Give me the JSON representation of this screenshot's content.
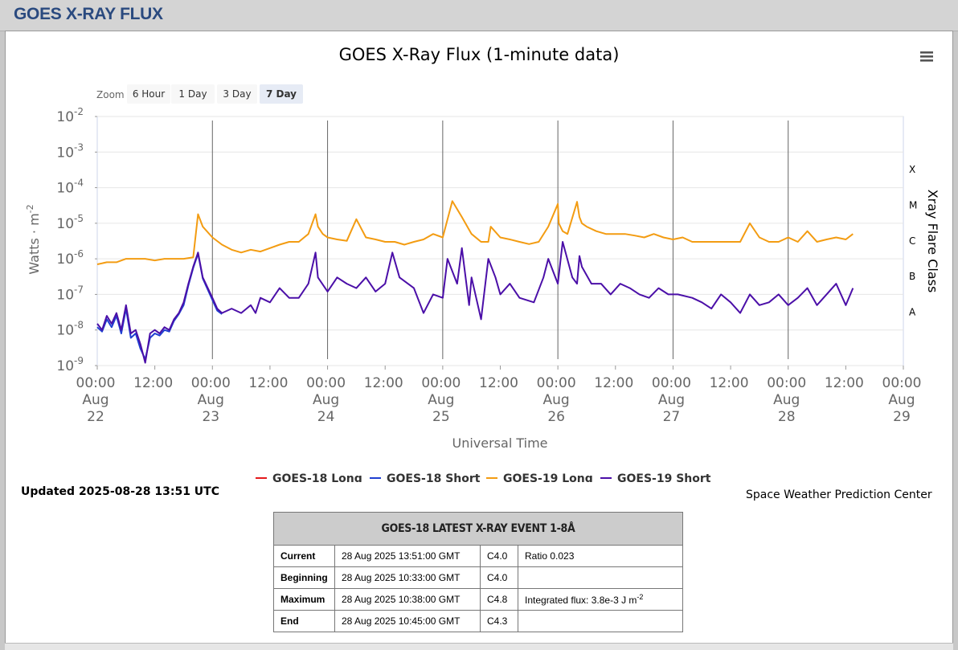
{
  "header": {
    "title": "GOES X-RAY FLUX"
  },
  "chart": {
    "title": "GOES X-Ray Flux (1-minute data)",
    "zoom_label": "Zoom",
    "zoom_buttons": [
      "6 Hour",
      "1 Day",
      "3 Day",
      "7 Day"
    ],
    "zoom_active": "7 Day",
    "y_axis_label": "Watts · m",
    "y_axis_sup": "-2",
    "x_axis_label": "Universal Time",
    "right_axis_label": "Xray Flare Class",
    "flare_classes": [
      "X",
      "M",
      "C",
      "B",
      "A"
    ],
    "y_tick_exponents": [
      "-2",
      "-3",
      "-4",
      "-5",
      "-6",
      "-7",
      "-8",
      "-9"
    ],
    "y_tick_base": "10",
    "x_ticks": [
      {
        "time": "00:00",
        "month": "Aug",
        "day": "22"
      },
      {
        "time": "12:00",
        "month": "",
        "day": ""
      },
      {
        "time": "00:00",
        "month": "Aug",
        "day": "23"
      },
      {
        "time": "12:00",
        "month": "",
        "day": ""
      },
      {
        "time": "00:00",
        "month": "Aug",
        "day": "24"
      },
      {
        "time": "12:00",
        "month": "",
        "day": ""
      },
      {
        "time": "00:00",
        "month": "Aug",
        "day": "25"
      },
      {
        "time": "12:00",
        "month": "",
        "day": ""
      },
      {
        "time": "00:00",
        "month": "Aug",
        "day": "26"
      },
      {
        "time": "12:00",
        "month": "",
        "day": ""
      },
      {
        "time": "00:00",
        "month": "Aug",
        "day": "27"
      },
      {
        "time": "12:00",
        "month": "",
        "day": ""
      },
      {
        "time": "00:00",
        "month": "Aug",
        "day": "28"
      },
      {
        "time": "12:00",
        "month": "",
        "day": ""
      },
      {
        "time": "00:00",
        "month": "Aug",
        "day": "29"
      }
    ],
    "legend": [
      {
        "name": "GOES-18 Long",
        "color": "#e41a1c"
      },
      {
        "name": "GOES-18 Short",
        "color": "#1f3fd1"
      },
      {
        "name": "GOES-19 Long",
        "color": "#f39c12"
      },
      {
        "name": "GOES-19 Short",
        "color": "#4b0fa8"
      }
    ],
    "updated": "Updated 2025-08-28 13:51 UTC",
    "credit": "Space Weather Prediction Center"
  },
  "chart_data": {
    "type": "line",
    "title": "GOES X-Ray Flux (1-minute data)",
    "xlabel": "Universal Time",
    "ylabel": "Watts · m-2",
    "yscale": "log",
    "ylim": [
      1e-09,
      0.01
    ],
    "x_unit": "hours since 2025-08-22 00:00 UTC",
    "xlim": [
      0,
      168
    ],
    "series": [
      {
        "name": "GOES-19 Long",
        "color": "#f39c12",
        "x": [
          0,
          2,
          4,
          6,
          8,
          10,
          12,
          14,
          16,
          18,
          20,
          21,
          22,
          24,
          26,
          28,
          30,
          32,
          34,
          36,
          38,
          40,
          42,
          44,
          45.5,
          46,
          47,
          48,
          50,
          52,
          54,
          56,
          58,
          60,
          61.5,
          62,
          64,
          66,
          68,
          70,
          72,
          74,
          76,
          78,
          80,
          81.5,
          82,
          84,
          86,
          88,
          90,
          92,
          94,
          96,
          96.2,
          97,
          98,
          100,
          100.5,
          101,
          102,
          104,
          106,
          108,
          110,
          112,
          114,
          116,
          118,
          120,
          122,
          124,
          126,
          128,
          130,
          132,
          134,
          136,
          138,
          140,
          142,
          144,
          146,
          148,
          150,
          152,
          154,
          156,
          157.5
        ],
        "y": [
          7e-07,
          8e-07,
          8e-07,
          1e-06,
          1e-06,
          1e-06,
          9e-07,
          1e-06,
          1e-06,
          1e-06,
          1.1e-06,
          1.8e-05,
          8e-06,
          4e-06,
          2.5e-06,
          1.8e-06,
          1.5e-06,
          1.8e-06,
          1.6e-06,
          2e-06,
          2.5e-06,
          3e-06,
          3e-06,
          5e-06,
          1.8e-05,
          8e-06,
          5e-06,
          4e-06,
          3.5e-06,
          3.2e-06,
          1.3e-05,
          4e-06,
          3.5e-06,
          3e-06,
          3e-06,
          3e-06,
          2.5e-06,
          3e-06,
          3.5e-06,
          5e-06,
          4e-06,
          4.2e-05,
          1.5e-05,
          5e-06,
          3e-06,
          3e-06,
          8e-06,
          4e-06,
          3.5e-06,
          3e-06,
          2.6e-06,
          3e-06,
          8e-06,
          3.5e-05,
          1e-05,
          6e-06,
          5e-06,
          4e-05,
          1.5e-05,
          1e-05,
          8e-06,
          6e-06,
          5e-06,
          5e-06,
          5e-06,
          4.5e-06,
          4e-06,
          5e-06,
          4e-06,
          3.5e-06,
          4e-06,
          3e-06,
          3e-06,
          3e-06,
          3e-06,
          3e-06,
          3e-06,
          1e-05,
          4e-06,
          3e-06,
          3e-06,
          4e-06,
          3e-06,
          6e-06,
          3e-06,
          3.5e-06,
          4e-06,
          3.5e-06,
          5e-06
        ]
      },
      {
        "name": "GOES-19 Short",
        "color": "#4b0fa8",
        "x": [
          0,
          1,
          2,
          3,
          4,
          5,
          6,
          7,
          8,
          9,
          10,
          11,
          12,
          13,
          14,
          15,
          16,
          17,
          18,
          19,
          20,
          21,
          22,
          24,
          25,
          26,
          28,
          30,
          32,
          33,
          34,
          36,
          38,
          40,
          42,
          44,
          45.5,
          46,
          48,
          50,
          52,
          54,
          56,
          58,
          60,
          61.5,
          63,
          66,
          68,
          70,
          72,
          73,
          75,
          76,
          77.5,
          78,
          80,
          81.5,
          83,
          84,
          86,
          88,
          91,
          93,
          94,
          96,
          97,
          99,
          100,
          100.5,
          101,
          103,
          105,
          107,
          109,
          111,
          113,
          115,
          117,
          119,
          121,
          124,
          126,
          128,
          130,
          132,
          134,
          136,
          138,
          140,
          142,
          144,
          146,
          148,
          150,
          152,
          154,
          156,
          157.5
        ],
        "y": [
          1.5e-08,
          1e-08,
          2.5e-08,
          1.5e-08,
          3e-08,
          1e-08,
          5e-08,
          8e-09,
          1e-08,
          4e-09,
          1.2e-09,
          8e-09,
          1e-08,
          8e-09,
          1.2e-08,
          1e-08,
          2e-08,
          3e-08,
          6e-08,
          2e-07,
          6e-07,
          1.5e-06,
          3e-07,
          8e-08,
          4e-08,
          3e-08,
          4e-08,
          3e-08,
          5e-08,
          3e-08,
          8e-08,
          6e-08,
          1.5e-07,
          8e-08,
          8e-08,
          2e-07,
          1.5e-06,
          3e-07,
          1.2e-07,
          3e-07,
          2e-07,
          1.5e-07,
          3e-07,
          1.2e-07,
          2e-07,
          1.5e-06,
          3e-07,
          1.5e-07,
          3e-08,
          1e-07,
          8e-08,
          1e-06,
          2e-07,
          2e-06,
          5e-08,
          3e-07,
          2e-08,
          1e-06,
          3e-07,
          1e-07,
          2e-07,
          8e-08,
          6e-08,
          3e-07,
          1e-06,
          2e-07,
          3e-06,
          3e-07,
          2e-07,
          1.2e-06,
          6e-07,
          2e-07,
          2e-07,
          1e-07,
          2e-07,
          1.5e-07,
          1e-07,
          8e-08,
          1.5e-07,
          1e-07,
          1e-07,
          8e-08,
          6e-08,
          4e-08,
          1e-07,
          6e-08,
          3e-08,
          1e-07,
          5e-08,
          6e-08,
          1e-07,
          5e-08,
          8e-08,
          1.5e-07,
          5e-08,
          1e-07,
          2e-07,
          5e-08,
          1.5e-07
        ]
      },
      {
        "name": "GOES-18 Short",
        "color": "#1f3fd1",
        "x": [
          0,
          1,
          2,
          3,
          4,
          5,
          6,
          7,
          8,
          9,
          10,
          11,
          12,
          13,
          14,
          15,
          16,
          17,
          18,
          19,
          20,
          21,
          22,
          24,
          25,
          26
        ],
        "y": [
          1.2e-08,
          9e-09,
          2e-08,
          1.2e-08,
          2.5e-08,
          8e-09,
          4e-08,
          6e-09,
          8e-09,
          3e-09,
          1.5e-09,
          6e-09,
          8e-09,
          7e-09,
          1e-08,
          9e-09,
          1.8e-08,
          2.8e-08,
          5e-08,
          1.8e-07,
          5.5e-07,
          1.4e-06,
          2.8e-07,
          7e-08,
          3.5e-08,
          2.8e-08
        ]
      }
    ],
    "right_axis": {
      "label": "Xray Flare Class",
      "classes": [
        "X",
        "M",
        "C",
        "B",
        "A"
      ]
    }
  },
  "event_table": {
    "title": "GOES-18 LATEST X-RAY EVENT 1-8Å",
    "rows": [
      {
        "label": "Current",
        "time": "28 Aug 2025 13:51:00 GMT",
        "class": "C4.0",
        "note": "Ratio 0.023",
        "note_sup": ""
      },
      {
        "label": "Beginning",
        "time": "28 Aug 2025 10:33:00 GMT",
        "class": "C4.0",
        "note": "",
        "note_sup": ""
      },
      {
        "label": "Maximum",
        "time": "28 Aug 2025 10:38:00 GMT",
        "class": "C4.8",
        "note": "Integrated flux: 3.8e-3 J m",
        "note_sup": "-2"
      },
      {
        "label": "End",
        "time": "28 Aug 2025 10:45:00 GMT",
        "class": "C4.3",
        "note": "",
        "note_sup": ""
      }
    ]
  }
}
